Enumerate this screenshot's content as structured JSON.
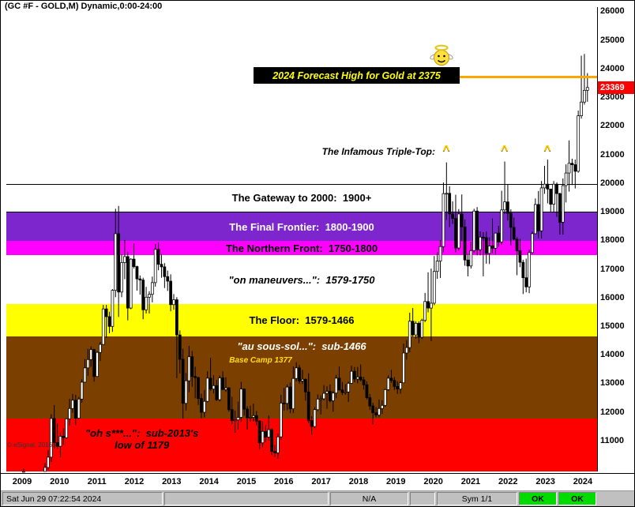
{
  "window": {
    "title": "(GC #F - GOLD,M) Dynamic,0:00-24:00"
  },
  "annotations": {
    "forecast": {
      "text": "2024 Forecast High for Gold at 2375",
      "line_value": 23750,
      "line_color": "#FFA500",
      "box_bg": "#000000",
      "text_color": "#FFFF00"
    },
    "triple_top": {
      "text": "The Infamous Triple-Top:",
      "caret_char": "^",
      "caret_color": "#FFD200",
      "caret_month_indices": [
        139,
        158,
        172
      ]
    },
    "price_label": {
      "text": "23369",
      "bg": "#FF0000",
      "text_color": "#FFFFFF"
    },
    "copyright": "© eSignal, 2016"
  },
  "bands": [
    {
      "label": "The Gateway to 2000:  1900+",
      "from": 19000,
      "to": 20000,
      "bg": "#FFFFFF",
      "text_color": "#000000",
      "border_color": "#000000"
    },
    {
      "label": "The Final Frontier:  1800-1900",
      "from": 18000,
      "to": 19000,
      "bg": "#7D26CD",
      "text_color": "#FFFFFF"
    },
    {
      "label": "The Northern Front:  1750-1800",
      "from": 17500,
      "to": 18000,
      "bg": "#FF00FF",
      "text_color": "#000000"
    },
    {
      "label": "\"on maneuvers...\":  1579-1750",
      "from": 15790,
      "to": 17500,
      "bg": "#FFFFFF",
      "text_color": "#000000",
      "italic": true
    },
    {
      "label": "The Floor:  1579-1466",
      "from": 14660,
      "to": 15790,
      "bg": "#FFFF00",
      "text_color": "#000000"
    },
    {
      "label": "\"au sous-sol...\":  sub-1466",
      "from": 11790,
      "to": 14660,
      "bg": "#7B3F00",
      "text_color": "#FFFFFF",
      "italic": true,
      "sub_label": "Base Camp 1377",
      "sub_label_value": 13770,
      "sub_label_color": "#FFE000"
    },
    {
      "label": "\"oh s***...\":  sub-2013's",
      "label2": "low of 1179",
      "from": 9950,
      "to": 11790,
      "bg": "#FF0000",
      "text_color": "#000000",
      "italic": true
    }
  ],
  "axis": {
    "y_ticks": [
      26000,
      25000,
      24000,
      23000,
      22000,
      21000,
      20000,
      19000,
      18000,
      17000,
      16000,
      15000,
      14000,
      13000,
      12000,
      11000
    ],
    "years": [
      2009,
      2010,
      2011,
      2012,
      2013,
      2014,
      2015,
      2016,
      2017,
      2018,
      2019,
      2020,
      2021,
      2022,
      2023,
      2024
    ]
  },
  "status_bar": {
    "timestamp": "Sat Jun 29 07:22:54 2024",
    "na": "N/A",
    "sym": "Sym 1/1",
    "ok1": "OK",
    "ok2": "OK",
    "ok_bg": "#00DC00"
  },
  "chart_data": {
    "type": "candlestick",
    "title": "GC #F - GOLD, Monthly",
    "y_unit": "price x10 (23369 = $2336.9)",
    "y_visible_range": [
      9950,
      26150
    ],
    "months_start": "2009-01",
    "months_end": "2024-06",
    "last_price": 23369,
    "candles_ohlc": [
      [
        8850,
        9300,
        8050,
        9280
      ],
      [
        9280,
        10060,
        8920,
        9520
      ],
      [
        9520,
        9900,
        8830,
        9220
      ],
      [
        9220,
        9360,
        8650,
        8880
      ],
      [
        8880,
        9800,
        8690,
        9750
      ],
      [
        9750,
        9900,
        9130,
        9340
      ],
      [
        9340,
        9570,
        9050,
        9530
      ],
      [
        9530,
        9750,
        9290,
        9550
      ],
      [
        9550,
        10250,
        9400,
        10090
      ],
      [
        10090,
        10700,
        10010,
        10450
      ],
      [
        10450,
        11950,
        10280,
        11800
      ],
      [
        11800,
        12270,
        10750,
        10960
      ],
      [
        10960,
        11630,
        10740,
        10830
      ],
      [
        10830,
        11310,
        10450,
        11180
      ],
      [
        11180,
        11460,
        10880,
        11130
      ],
      [
        11130,
        11810,
        11100,
        11790
      ],
      [
        11790,
        12490,
        11560,
        12150
      ],
      [
        12150,
        12660,
        12000,
        12440
      ],
      [
        12440,
        12630,
        11570,
        11810
      ],
      [
        11810,
        12550,
        11790,
        12480
      ],
      [
        12480,
        13170,
        12350,
        13070
      ],
      [
        13070,
        13880,
        13050,
        13570
      ],
      [
        13570,
        14240,
        13290,
        13860
      ],
      [
        13860,
        14320,
        13610,
        14210
      ],
      [
        14210,
        14240,
        13090,
        13270
      ],
      [
        13270,
        14160,
        13250,
        14110
      ],
      [
        14110,
        14480,
        13810,
        14390
      ],
      [
        14390,
        15770,
        14380,
        15630
      ],
      [
        15630,
        15770,
        14620,
        15360
      ],
      [
        15360,
        15530,
        14780,
        15020
      ],
      [
        15020,
        16320,
        14830,
        16280
      ],
      [
        16280,
        19130,
        16040,
        18260
      ],
      [
        18260,
        19230,
        15350,
        16220
      ],
      [
        16220,
        17540,
        16040,
        17250
      ],
      [
        17250,
        18040,
        16670,
        17460
      ],
      [
        17460,
        17630,
        15230,
        15660
      ],
      [
        15660,
        17400,
        15620,
        17370
      ],
      [
        17370,
        17920,
        17040,
        17110
      ],
      [
        17110,
        17140,
        16270,
        16680
      ],
      [
        16680,
        16800,
        16130,
        16640
      ],
      [
        16640,
        16720,
        15270,
        15600
      ],
      [
        15600,
        16400,
        15470,
        16040
      ],
      [
        16040,
        16250,
        15470,
        16140
      ],
      [
        16140,
        16760,
        15860,
        16550
      ],
      [
        16550,
        17900,
        16410,
        17710
      ],
      [
        17710,
        17960,
        16980,
        17190
      ],
      [
        17190,
        17550,
        16720,
        17100
      ],
      [
        17100,
        17230,
        16360,
        16760
      ],
      [
        16760,
        16970,
        16260,
        16600
      ],
      [
        16600,
        16840,
        15550,
        15780
      ],
      [
        15780,
        16150,
        15600,
        15950
      ],
      [
        15950,
        16040,
        13210,
        14720
      ],
      [
        14720,
        14880,
        13380,
        13870
      ],
      [
        13870,
        14240,
        11790,
        12330
      ],
      [
        12330,
        13390,
        12080,
        13120
      ],
      [
        13120,
        14340,
        12720,
        13960
      ],
      [
        13960,
        14160,
        12910,
        13270
      ],
      [
        13270,
        13610,
        12510,
        13230
      ],
      [
        13230,
        13260,
        12270,
        12500
      ],
      [
        12500,
        12670,
        11810,
        12020
      ],
      [
        12020,
        12800,
        11840,
        12400
      ],
      [
        12400,
        13450,
        12370,
        13210
      ],
      [
        13210,
        13920,
        12770,
        12830
      ],
      [
        12830,
        13310,
        12680,
        12950
      ],
      [
        12950,
        13150,
        12410,
        12460
      ],
      [
        12460,
        13300,
        12400,
        13220
      ],
      [
        13220,
        13450,
        12810,
        12810
      ],
      [
        12810,
        13240,
        12730,
        12870
      ],
      [
        12870,
        12900,
        12040,
        12110
      ],
      [
        12110,
        12560,
        11600,
        11730
      ],
      [
        11730,
        12080,
        11300,
        11750
      ],
      [
        11750,
        12390,
        11410,
        11840
      ],
      [
        11840,
        13080,
        11680,
        12830
      ],
      [
        12830,
        12850,
        11900,
        12130
      ],
      [
        12130,
        12230,
        11410,
        11830
      ],
      [
        11830,
        12250,
        11690,
        11840
      ],
      [
        11840,
        12320,
        11700,
        11900
      ],
      [
        11900,
        12060,
        11570,
        11710
      ],
      [
        11710,
        11740,
        10720,
        10950
      ],
      [
        10950,
        11700,
        10800,
        11350
      ],
      [
        11350,
        11570,
        10980,
        11150
      ],
      [
        11150,
        11910,
        11040,
        11410
      ],
      [
        11410,
        11460,
        10520,
        10650
      ],
      [
        10650,
        10880,
        10460,
        10600
      ],
      [
        10600,
        11280,
        10390,
        11160
      ],
      [
        11160,
        12630,
        11050,
        12340
      ],
      [
        12340,
        12870,
        12080,
        12330
      ],
      [
        12330,
        12990,
        12090,
        12900
      ],
      [
        12900,
        13060,
        11990,
        12140
      ],
      [
        12140,
        13620,
        11990,
        13200
      ],
      [
        13200,
        13770,
        13100,
        13570
      ],
      [
        13570,
        13670,
        13020,
        13110
      ],
      [
        13110,
        13500,
        13010,
        13170
      ],
      [
        13170,
        13200,
        12430,
        12730
      ],
      [
        12730,
        13380,
        11630,
        11730
      ],
      [
        11730,
        11880,
        11240,
        11520
      ],
      [
        11520,
        12200,
        11460,
        12110
      ],
      [
        12110,
        12640,
        12060,
        12480
      ],
      [
        12480,
        12610,
        11940,
        12490
      ],
      [
        12490,
        12970,
        12440,
        12680
      ],
      [
        12680,
        12930,
        12140,
        12750
      ],
      [
        12750,
        12990,
        12360,
        12420
      ],
      [
        12420,
        12770,
        12040,
        12690
      ],
      [
        12690,
        13320,
        12510,
        13210
      ],
      [
        13210,
        13620,
        12770,
        12800
      ],
      [
        12800,
        13080,
        12620,
        12710
      ],
      [
        12710,
        13000,
        12630,
        12730
      ],
      [
        12730,
        13090,
        12380,
        13030
      ],
      [
        13030,
        13650,
        13020,
        13450
      ],
      [
        13450,
        13600,
        13070,
        13180
      ],
      [
        13180,
        13600,
        13030,
        13250
      ],
      [
        13250,
        13690,
        13100,
        13150
      ],
      [
        13150,
        13260,
        12810,
        12980
      ],
      [
        12980,
        13100,
        12470,
        12530
      ],
      [
        12530,
        12660,
        12100,
        12240
      ],
      [
        12240,
        12350,
        11600,
        12000
      ],
      [
        12000,
        12200,
        11840,
        11920
      ],
      [
        11920,
        12460,
        11840,
        12150
      ],
      [
        12150,
        12440,
        11960,
        12260
      ],
      [
        12260,
        12840,
        12210,
        12810
      ],
      [
        12810,
        13310,
        12770,
        13210
      ],
      [
        13210,
        13500,
        13050,
        13130
      ],
      [
        13130,
        13250,
        12800,
        12920
      ],
      [
        12920,
        13100,
        12660,
        12830
      ],
      [
        12830,
        13110,
        12670,
        13050
      ],
      [
        13050,
        14420,
        13050,
        14090
      ],
      [
        14090,
        14540,
        13860,
        14280
      ],
      [
        14280,
        15500,
        14120,
        15200
      ],
      [
        15200,
        15660,
        14650,
        14720
      ],
      [
        14720,
        15200,
        14590,
        15130
      ],
      [
        15130,
        15200,
        14430,
        14640
      ],
      [
        14640,
        15290,
        14580,
        15230
      ],
      [
        15230,
        16190,
        15170,
        15890
      ],
      [
        15890,
        16910,
        15510,
        15660
      ],
      [
        15660,
        17040,
        14500,
        15830
      ],
      [
        15830,
        17480,
        15760,
        16940
      ],
      [
        16940,
        17620,
        16680,
        17300
      ],
      [
        17300,
        18040,
        16710,
        17810
      ],
      [
        17810,
        20050,
        17610,
        19660
      ],
      [
        19660,
        20750,
        18740,
        19670
      ],
      [
        19670,
        19920,
        18490,
        18950
      ],
      [
        18950,
        19390,
        18600,
        18790
      ],
      [
        18790,
        19620,
        17610,
        17760
      ],
      [
        17760,
        19120,
        17670,
        18950
      ],
      [
        18950,
        19630,
        18000,
        18500
      ],
      [
        18500,
        18760,
        17140,
        17340
      ],
      [
        17340,
        17560,
        16770,
        17130
      ],
      [
        17130,
        17980,
        17040,
        17670
      ],
      [
        17670,
        19130,
        17580,
        19050
      ],
      [
        19050,
        19190,
        17500,
        17700
      ],
      [
        17700,
        18340,
        17500,
        18140
      ],
      [
        18140,
        18310,
        16770,
        18120
      ],
      [
        18120,
        18340,
        17210,
        17570
      ],
      [
        17570,
        18130,
        17200,
        17830
      ],
      [
        17830,
        18790,
        17580,
        17750
      ],
      [
        17750,
        18300,
        17530,
        18280
      ],
      [
        18280,
        18530,
        17800,
        17970
      ],
      [
        17970,
        19760,
        17880,
        19090
      ],
      [
        19090,
        20780,
        18950,
        19370
      ],
      [
        19370,
        19980,
        18720,
        18970
      ],
      [
        18970,
        19110,
        17850,
        18480
      ],
      [
        18480,
        18820,
        18030,
        18070
      ],
      [
        18070,
        18140,
        16810,
        17660
      ],
      [
        17660,
        18080,
        17090,
        17260
      ],
      [
        17260,
        17350,
        16150,
        16720
      ],
      [
        16720,
        17390,
        16210,
        16400
      ],
      [
        16400,
        17700,
        16180,
        17600
      ],
      [
        17600,
        18330,
        17550,
        18260
      ],
      [
        18260,
        19490,
        18240,
        19280
      ],
      [
        19280,
        19750,
        18100,
        18360
      ],
      [
        18360,
        20100,
        18090,
        19860
      ],
      [
        19860,
        20630,
        19650,
        19990
      ],
      [
        19990,
        20850,
        19320,
        19820
      ],
      [
        19820,
        19830,
        19000,
        19290
      ],
      [
        19290,
        20100,
        19000,
        19990
      ],
      [
        19990,
        20050,
        18850,
        19660
      ],
      [
        19660,
        19690,
        18230,
        18660
      ],
      [
        18660,
        20190,
        18230,
        19940
      ],
      [
        19940,
        20680,
        19350,
        20380
      ],
      [
        20380,
        21520,
        19730,
        20720
      ],
      [
        20720,
        20880,
        19960,
        20670
      ],
      [
        20670,
        20850,
        19840,
        20440
      ],
      [
        20440,
        22560,
        20390,
        22380
      ],
      [
        22380,
        24480,
        22280,
        22860
      ],
      [
        22860,
        24540,
        22770,
        23270
      ],
      [
        23270,
        23870,
        22870,
        23369
      ]
    ]
  }
}
